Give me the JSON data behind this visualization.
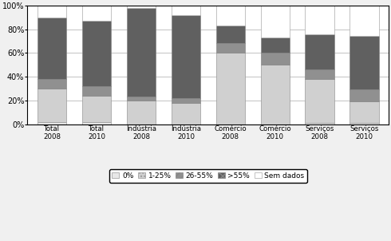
{
  "categories": [
    "Total\n2008",
    "Total\n2010",
    "Indústria\n2008",
    "Indústria\n2010",
    "Comércio\n2008",
    "Comércio\n2010",
    "Serviços\n2008",
    "Serviços\n2010"
  ],
  "segments": {
    "0%": [
      2,
      2,
      0,
      0,
      0,
      0,
      1,
      1
    ],
    "1-25%": [
      28,
      22,
      20,
      18,
      60,
      50,
      37,
      18
    ],
    "26-55%": [
      8,
      8,
      3,
      4,
      8,
      10,
      8,
      10
    ],
    "55%+": [
      52,
      55,
      75,
      70,
      15,
      13,
      30,
      45
    ],
    "Sem dados": [
      10,
      13,
      2,
      8,
      17,
      27,
      24,
      26
    ]
  },
  "colors": {
    "0%": "#e8e8e8",
    "1-25%": "#d0d0d0",
    "26-55%": "#909090",
    "55%+": "#606060",
    "Sem dados": "#ffffff"
  },
  "edge_colors": {
    "0%": "#999999",
    "1-25%": "#999999",
    "26-55%": "#888888",
    "55%+": "#888888",
    "Sem dados": "#aaaaaa"
  },
  "legend_labels": [
    "0%",
    "1-25%",
    "26-55%",
    ">55%",
    "Sem dados"
  ],
  "legend_marker_colors": [
    "#e8e8e8",
    "#d0d0d0",
    "#909090",
    "#606060",
    "#ffffff"
  ],
  "legend_marker_hatches": [
    "",
    "....",
    "////",
    "xxxx",
    ""
  ],
  "ylim": [
    0,
    100
  ],
  "yticks": [
    0,
    20,
    40,
    60,
    80,
    100
  ],
  "yticklabels": [
    "0%",
    "20%",
    "40%",
    "60%",
    "80%",
    "100%"
  ],
  "background_color": "#f0f0f0",
  "plot_bg": "#ffffff",
  "bar_width": 0.65,
  "figsize": [
    4.9,
    3.02
  ],
  "dpi": 100
}
